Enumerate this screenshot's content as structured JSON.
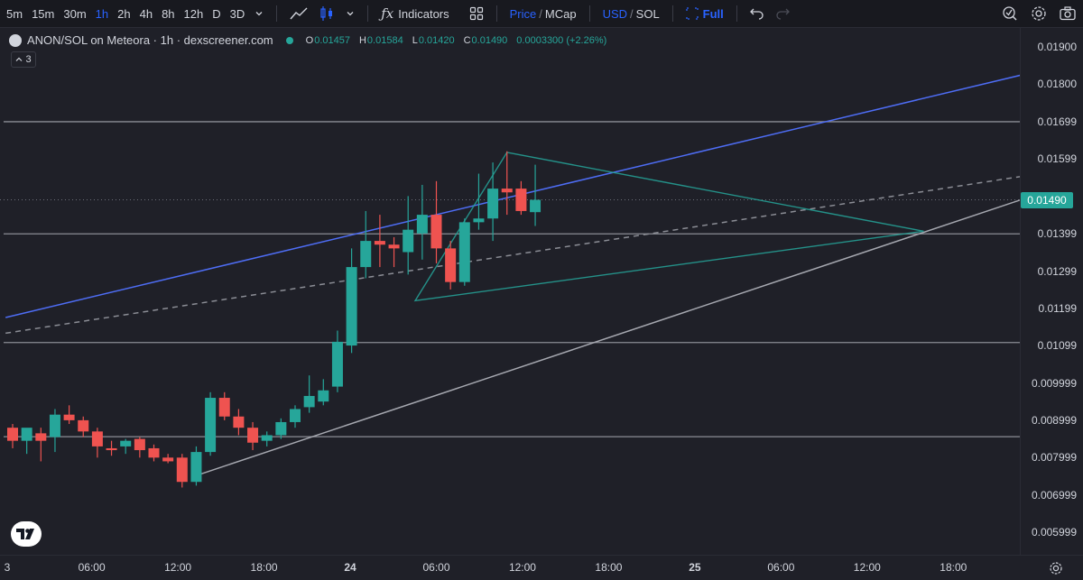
{
  "toolbar": {
    "timeframes": [
      "5m",
      "15m",
      "30m",
      "1h",
      "2h",
      "4h",
      "8h",
      "12h",
      "D",
      "3D"
    ],
    "active_timeframe": "1h",
    "indicators_label": "Indicators",
    "price_label": "Price",
    "mcap_label": "MCap",
    "usd_label": "USD",
    "sol_label": "SOL",
    "full_label": "Full",
    "separator": "/",
    "icons": [
      "chevron-down-icon",
      "line-chart-icon",
      "candles-icon",
      "fx-icon",
      "layout-grid-icon",
      "expand-icon",
      "undo-icon",
      "redo-icon",
      "alert-icon",
      "settings-icon",
      "camera-icon"
    ]
  },
  "legend": {
    "title": "ANON/SOL on Meteora · 1h · dexscreener.com",
    "o_label": "O",
    "o_value": "0.01457",
    "h_label": "H",
    "h_value": "0.01584",
    "l_label": "L",
    "l_value": "0.01420",
    "c_label": "C",
    "c_value": "0.01490",
    "change": "0.0003300 (+2.26%)",
    "collapsed_count": "3"
  },
  "colors": {
    "up": "#26a69a",
    "down": "#ef5350",
    "blue_line": "#4e6df5",
    "triangle": "#26a69a",
    "level_line": "#8b8d95",
    "bg": "#1f2028"
  },
  "chart_data": {
    "type": "candlestick",
    "title": "ANON/SOL on Meteora · 1h · dexscreener.com",
    "x_tick_labels": [
      "3",
      "06:00",
      "12:00",
      "18:00",
      "24",
      "06:00",
      "12:00",
      "18:00",
      "25",
      "06:00",
      "12:00",
      "18:00"
    ],
    "y_tick_labels": [
      "0.01900",
      "0.01800",
      "0.01699",
      "0.01599",
      "0.01399",
      "0.01299",
      "0.01199",
      "0.01099",
      "0.009999",
      "0.008999",
      "0.007999",
      "0.006999",
      "0.005999"
    ],
    "last_price": "0.01490",
    "grid": false,
    "candles": [
      {
        "o": 0.0088,
        "h": 0.0089,
        "l": 0.00825,
        "c": 0.00845
      },
      {
        "o": 0.00845,
        "h": 0.0087,
        "l": 0.0081,
        "c": 0.0088
      },
      {
        "o": 0.00865,
        "h": 0.0088,
        "l": 0.0079,
        "c": 0.00845
      },
      {
        "o": 0.00855,
        "h": 0.0093,
        "l": 0.00815,
        "c": 0.00915
      },
      {
        "o": 0.00915,
        "h": 0.0094,
        "l": 0.0089,
        "c": 0.009
      },
      {
        "o": 0.009,
        "h": 0.0091,
        "l": 0.00855,
        "c": 0.0087
      },
      {
        "o": 0.0087,
        "h": 0.0088,
        "l": 0.008,
        "c": 0.0083
      },
      {
        "o": 0.00825,
        "h": 0.00845,
        "l": 0.00805,
        "c": 0.0082
      },
      {
        "o": 0.0083,
        "h": 0.0085,
        "l": 0.0081,
        "c": 0.00845
      },
      {
        "o": 0.0085,
        "h": 0.00855,
        "l": 0.008,
        "c": 0.0082
      },
      {
        "o": 0.00825,
        "h": 0.00835,
        "l": 0.0079,
        "c": 0.008
      },
      {
        "o": 0.008,
        "h": 0.0081,
        "l": 0.00785,
        "c": 0.0079
      },
      {
        "o": 0.008,
        "h": 0.0081,
        "l": 0.0072,
        "c": 0.00735
      },
      {
        "o": 0.00735,
        "h": 0.0083,
        "l": 0.00725,
        "c": 0.00815
      },
      {
        "o": 0.00815,
        "h": 0.00975,
        "l": 0.00805,
        "c": 0.0096
      },
      {
        "o": 0.0096,
        "h": 0.00975,
        "l": 0.009,
        "c": 0.0091
      },
      {
        "o": 0.0091,
        "h": 0.0093,
        "l": 0.0086,
        "c": 0.0088
      },
      {
        "o": 0.0088,
        "h": 0.00895,
        "l": 0.0082,
        "c": 0.0084
      },
      {
        "o": 0.00845,
        "h": 0.0087,
        "l": 0.0083,
        "c": 0.0086
      },
      {
        "o": 0.0086,
        "h": 0.00905,
        "l": 0.0085,
        "c": 0.00895
      },
      {
        "o": 0.00895,
        "h": 0.0094,
        "l": 0.0088,
        "c": 0.0093
      },
      {
        "o": 0.00935,
        "h": 0.0102,
        "l": 0.0092,
        "c": 0.00965
      },
      {
        "o": 0.0095,
        "h": 0.0101,
        "l": 0.0094,
        "c": 0.0098
      },
      {
        "o": 0.0099,
        "h": 0.0114,
        "l": 0.00975,
        "c": 0.0111
      },
      {
        "o": 0.011,
        "h": 0.0136,
        "l": 0.0108,
        "c": 0.0131
      },
      {
        "o": 0.0131,
        "h": 0.0146,
        "l": 0.0128,
        "c": 0.0138
      },
      {
        "o": 0.0138,
        "h": 0.0145,
        "l": 0.0131,
        "c": 0.0137
      },
      {
        "o": 0.0137,
        "h": 0.0139,
        "l": 0.0131,
        "c": 0.0136
      },
      {
        "o": 0.0135,
        "h": 0.015,
        "l": 0.0129,
        "c": 0.0141
      },
      {
        "o": 0.014,
        "h": 0.0153,
        "l": 0.0133,
        "c": 0.0145
      },
      {
        "o": 0.0145,
        "h": 0.0154,
        "l": 0.0132,
        "c": 0.0136
      },
      {
        "o": 0.0136,
        "h": 0.0138,
        "l": 0.0125,
        "c": 0.0127
      },
      {
        "o": 0.0127,
        "h": 0.0144,
        "l": 0.0126,
        "c": 0.0143
      },
      {
        "o": 0.0143,
        "h": 0.0156,
        "l": 0.0141,
        "c": 0.0144
      },
      {
        "o": 0.0144,
        "h": 0.0159,
        "l": 0.0138,
        "c": 0.0152
      },
      {
        "o": 0.0152,
        "h": 0.0162,
        "l": 0.0145,
        "c": 0.0151
      },
      {
        "o": 0.0152,
        "h": 0.0154,
        "l": 0.0145,
        "c": 0.0146
      },
      {
        "o": 0.01457,
        "h": 0.01584,
        "l": 0.0142,
        "c": 0.0149
      }
    ],
    "horizontal_levels": [
      0.01699,
      0.01399,
      0.01108,
      0.00856
    ],
    "trend_lines": [
      {
        "name": "blue-resistance",
        "style": "solid",
        "from": {
          "i": -0.5,
          "y": 0.01175
        },
        "to": {
          "i": 78.5,
          "y": 0.01888
        }
      },
      {
        "name": "gray-support",
        "style": "solid",
        "from": {
          "i": 13,
          "y": 0.00752
        },
        "to": {
          "i": 78.5,
          "y": 0.0158
        }
      },
      {
        "name": "gray-midline",
        "style": "dashed",
        "from": {
          "i": -0.5,
          "y": 0.01133
        },
        "to": {
          "i": 78.5,
          "y": 0.01594
        }
      }
    ],
    "triangle": [
      {
        "i": 35,
        "y": 0.01617
      },
      {
        "i": 64.5,
        "y": 0.01406
      },
      {
        "i": 28.5,
        "y": 0.0122
      }
    ],
    "ylim": [
      0.0054,
      0.0195
    ],
    "xlim": [
      -0.5,
      78.5
    ]
  }
}
